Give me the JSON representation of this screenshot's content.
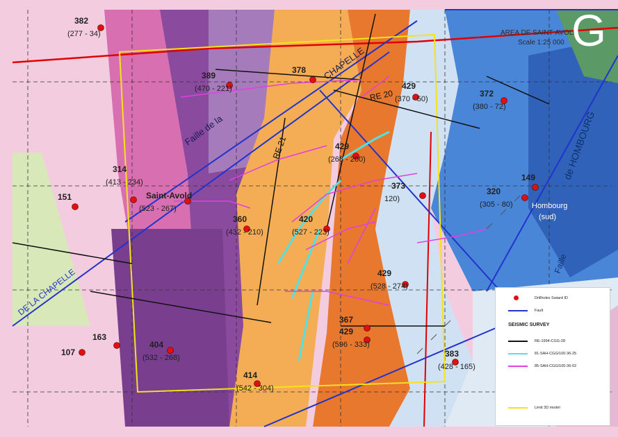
{
  "panel_letter": "G",
  "area_title": "AREA DE SAINT-AVOLD",
  "scale": "Scale 1:25 000",
  "colors": {
    "fault": "#2233cc",
    "seismic_re1994": "#111111",
    "seismic_81": "#55e0e0",
    "seismic_85": "#e040e0",
    "limit_3d": "#f5e21a",
    "boreholes": "#e01010",
    "zone_red_line": "#e00000"
  },
  "map_labels": {
    "fault_chapelle_top": "CHAPELLE",
    "fault_chapelle_label": "Faille de la",
    "fault_chapelle_bottom": "DE LA CHAPELLE",
    "fault_hombourg": "de HOMBOURG",
    "re20": "RE 20",
    "re21": "RE 21",
    "hombourg_sud": "Hombourg",
    "sud": "(sud)",
    "faille_lower": "Faille"
  },
  "boreholes": [
    {
      "id": "382",
      "range": "(277 - 34)"
    },
    {
      "id": "378",
      "range": ""
    },
    {
      "id": "389",
      "range": "(470 - 221)"
    },
    {
      "id": "372",
      "range": "(380 - 72)"
    },
    {
      "id": "429",
      "range": "(370 - 50)"
    },
    {
      "id": "314",
      "range": "(413 - 234)"
    },
    {
      "id": "151",
      "range": ""
    },
    {
      "id": "429",
      "range": "(268 - 200)"
    },
    {
      "id": "420",
      "range": "(527 - 223)"
    },
    {
      "id": "320",
      "range": "(305 - 80)"
    },
    {
      "id": "373",
      "range": "120)"
    },
    {
      "id": "149",
      "range": ""
    },
    {
      "id": "360",
      "range": "(432 - 210)"
    },
    {
      "id": "Saint-Avold",
      "range": "(523 - 267)"
    },
    {
      "id": "429",
      "range": "(528 - 274)"
    },
    {
      "id": "367",
      "range": ""
    },
    {
      "id": "429",
      "range": "(596 - 333)"
    },
    {
      "id": "107",
      "range": ""
    },
    {
      "id": "163",
      "range": ""
    },
    {
      "id": "404",
      "range": "(532 - 268)"
    },
    {
      "id": "414",
      "range": "(542 - 304)"
    },
    {
      "id": "383",
      "range": "(428 - 165)"
    }
  ],
  "legend": {
    "boreholes": "Drillholes Swiard ID",
    "fault": "Fault",
    "seismic_title": "SEISMIC SURVEY",
    "s1": "RE-1994-CGG-28",
    "s2": "81-SAH-CGG/100-36-25",
    "s3": "85-SAH-CGG/100-36-02",
    "limit": "Limit 3D model"
  }
}
